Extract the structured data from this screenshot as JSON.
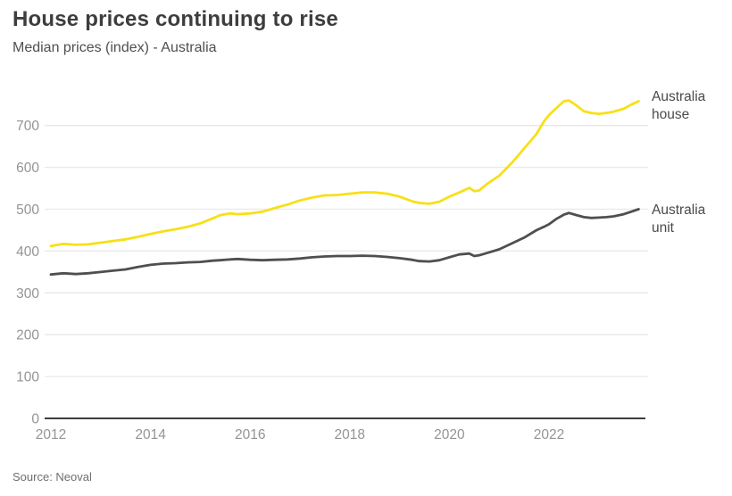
{
  "header": {
    "title": "House prices continuing to rise",
    "subtitle": "Median prices (index) - Australia"
  },
  "footer": {
    "source": "Source: Neoval"
  },
  "colors": {
    "house_line": "#f7e017",
    "unit_line": "#4f4f4f",
    "gridline": "#e8e8e8",
    "axis_line": "#3d3d3d",
    "tick_label": "#949494"
  },
  "chart_data": {
    "type": "line",
    "title": "House prices continuing to rise",
    "subtitle": "Median prices (index) - Australia",
    "xlabel": "",
    "ylabel": "",
    "xlim": [
      2012,
      2023.85
    ],
    "ylim": [
      0,
      780
    ],
    "grid": "horizontal",
    "legend_position": "right-of-line-ends",
    "xticks": [
      2012,
      2014,
      2016,
      2018,
      2020,
      2022
    ],
    "yticks": [
      0,
      100,
      200,
      300,
      400,
      500,
      600,
      700
    ],
    "x": [
      2012.0,
      2012.25,
      2012.5,
      2012.75,
      2013.0,
      2013.25,
      2013.5,
      2013.75,
      2014.0,
      2014.25,
      2014.5,
      2014.75,
      2015.0,
      2015.25,
      2015.4,
      2015.6,
      2015.75,
      2016.0,
      2016.25,
      2016.5,
      2016.75,
      2017.0,
      2017.25,
      2017.5,
      2017.75,
      2018.0,
      2018.25,
      2018.5,
      2018.75,
      2019.0,
      2019.25,
      2019.4,
      2019.6,
      2019.8,
      2020.0,
      2020.2,
      2020.4,
      2020.5,
      2020.6,
      2020.75,
      2021.0,
      2021.25,
      2021.5,
      2021.75,
      2021.9,
      2022.0,
      2022.15,
      2022.3,
      2022.4,
      2022.55,
      2022.7,
      2022.85,
      2023.0,
      2023.15,
      2023.3,
      2023.5,
      2023.65,
      2023.8
    ],
    "series": [
      {
        "name": "Australia house",
        "label": "Australia house",
        "color": "#f7e017",
        "values": [
          412,
          417,
          415,
          416,
          420,
          424,
          428,
          434,
          441,
          447,
          452,
          458,
          466,
          478,
          486,
          490,
          488,
          490,
          494,
          503,
          511,
          521,
          528,
          533,
          534,
          537,
          540,
          540,
          537,
          530,
          519,
          515,
          513,
          518,
          530,
          540,
          551,
          543,
          545,
          560,
          580,
          610,
          645,
          680,
          710,
          725,
          742,
          758,
          760,
          748,
          734,
          730,
          728,
          730,
          733,
          740,
          750,
          758
        ]
      },
      {
        "name": "Australia unit",
        "label": "Australia unit",
        "color": "#4f4f4f",
        "values": [
          344,
          347,
          345,
          347,
          350,
          353,
          356,
          362,
          367,
          370,
          371,
          373,
          374,
          377,
          378,
          380,
          381,
          379,
          378,
          379,
          380,
          382,
          385,
          387,
          388,
          388,
          389,
          388,
          386,
          383,
          379,
          376,
          375,
          378,
          385,
          392,
          394,
          388,
          390,
          395,
          404,
          418,
          432,
          450,
          458,
          464,
          477,
          487,
          491,
          486,
          481,
          479,
          480,
          481,
          483,
          488,
          494,
          500
        ]
      }
    ]
  }
}
